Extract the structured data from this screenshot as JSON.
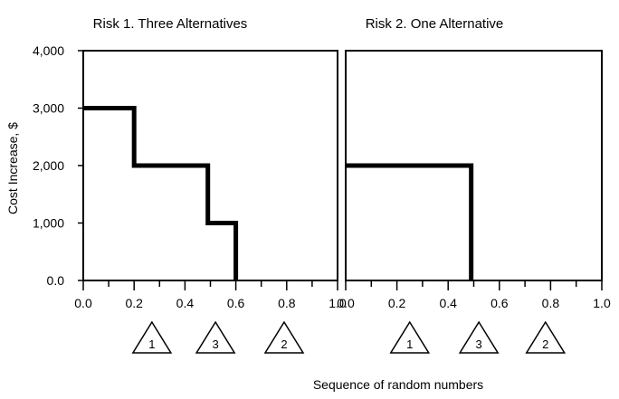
{
  "chart_data": [
    {
      "type": "line",
      "title": "Risk 1. Three Alternatives",
      "ylabel": "Cost Increase, $",
      "xlim": [
        0,
        1
      ],
      "ylim": [
        0,
        4000
      ],
      "x_ticks": [
        "0.0",
        "0.2",
        "0.4",
        "0.6",
        "0.8",
        "1.0"
      ],
      "y_ticks": [
        "0.0",
        "1,000",
        "2,000",
        "3,000",
        "4,000"
      ],
      "series": [
        {
          "x": [
            0,
            0.2,
            0.2,
            0.49,
            0.49,
            0.6,
            0.6
          ],
          "y": [
            3000,
            3000,
            2000,
            2000,
            1000,
            1000,
            0
          ]
        }
      ],
      "markers": [
        {
          "label": "1",
          "x": 0.27
        },
        {
          "label": "3",
          "x": 0.52
        },
        {
          "label": "2",
          "x": 0.79
        }
      ]
    },
    {
      "type": "line",
      "title": "Risk 2. One Alternative",
      "xlim": [
        0,
        1
      ],
      "ylim": [
        0,
        4000
      ],
      "x_ticks": [
        "0.0",
        "0.2",
        "0.4",
        "0.6",
        "0.8",
        "1.0"
      ],
      "series": [
        {
          "x": [
            0,
            0.49,
            0.49
          ],
          "y": [
            2000,
            2000,
            0
          ]
        }
      ],
      "markers": [
        {
          "label": "1",
          "x": 0.25
        },
        {
          "label": "3",
          "x": 0.52
        },
        {
          "label": "2",
          "x": 0.78
        }
      ]
    }
  ],
  "xlabel": "Sequence of random numbers"
}
